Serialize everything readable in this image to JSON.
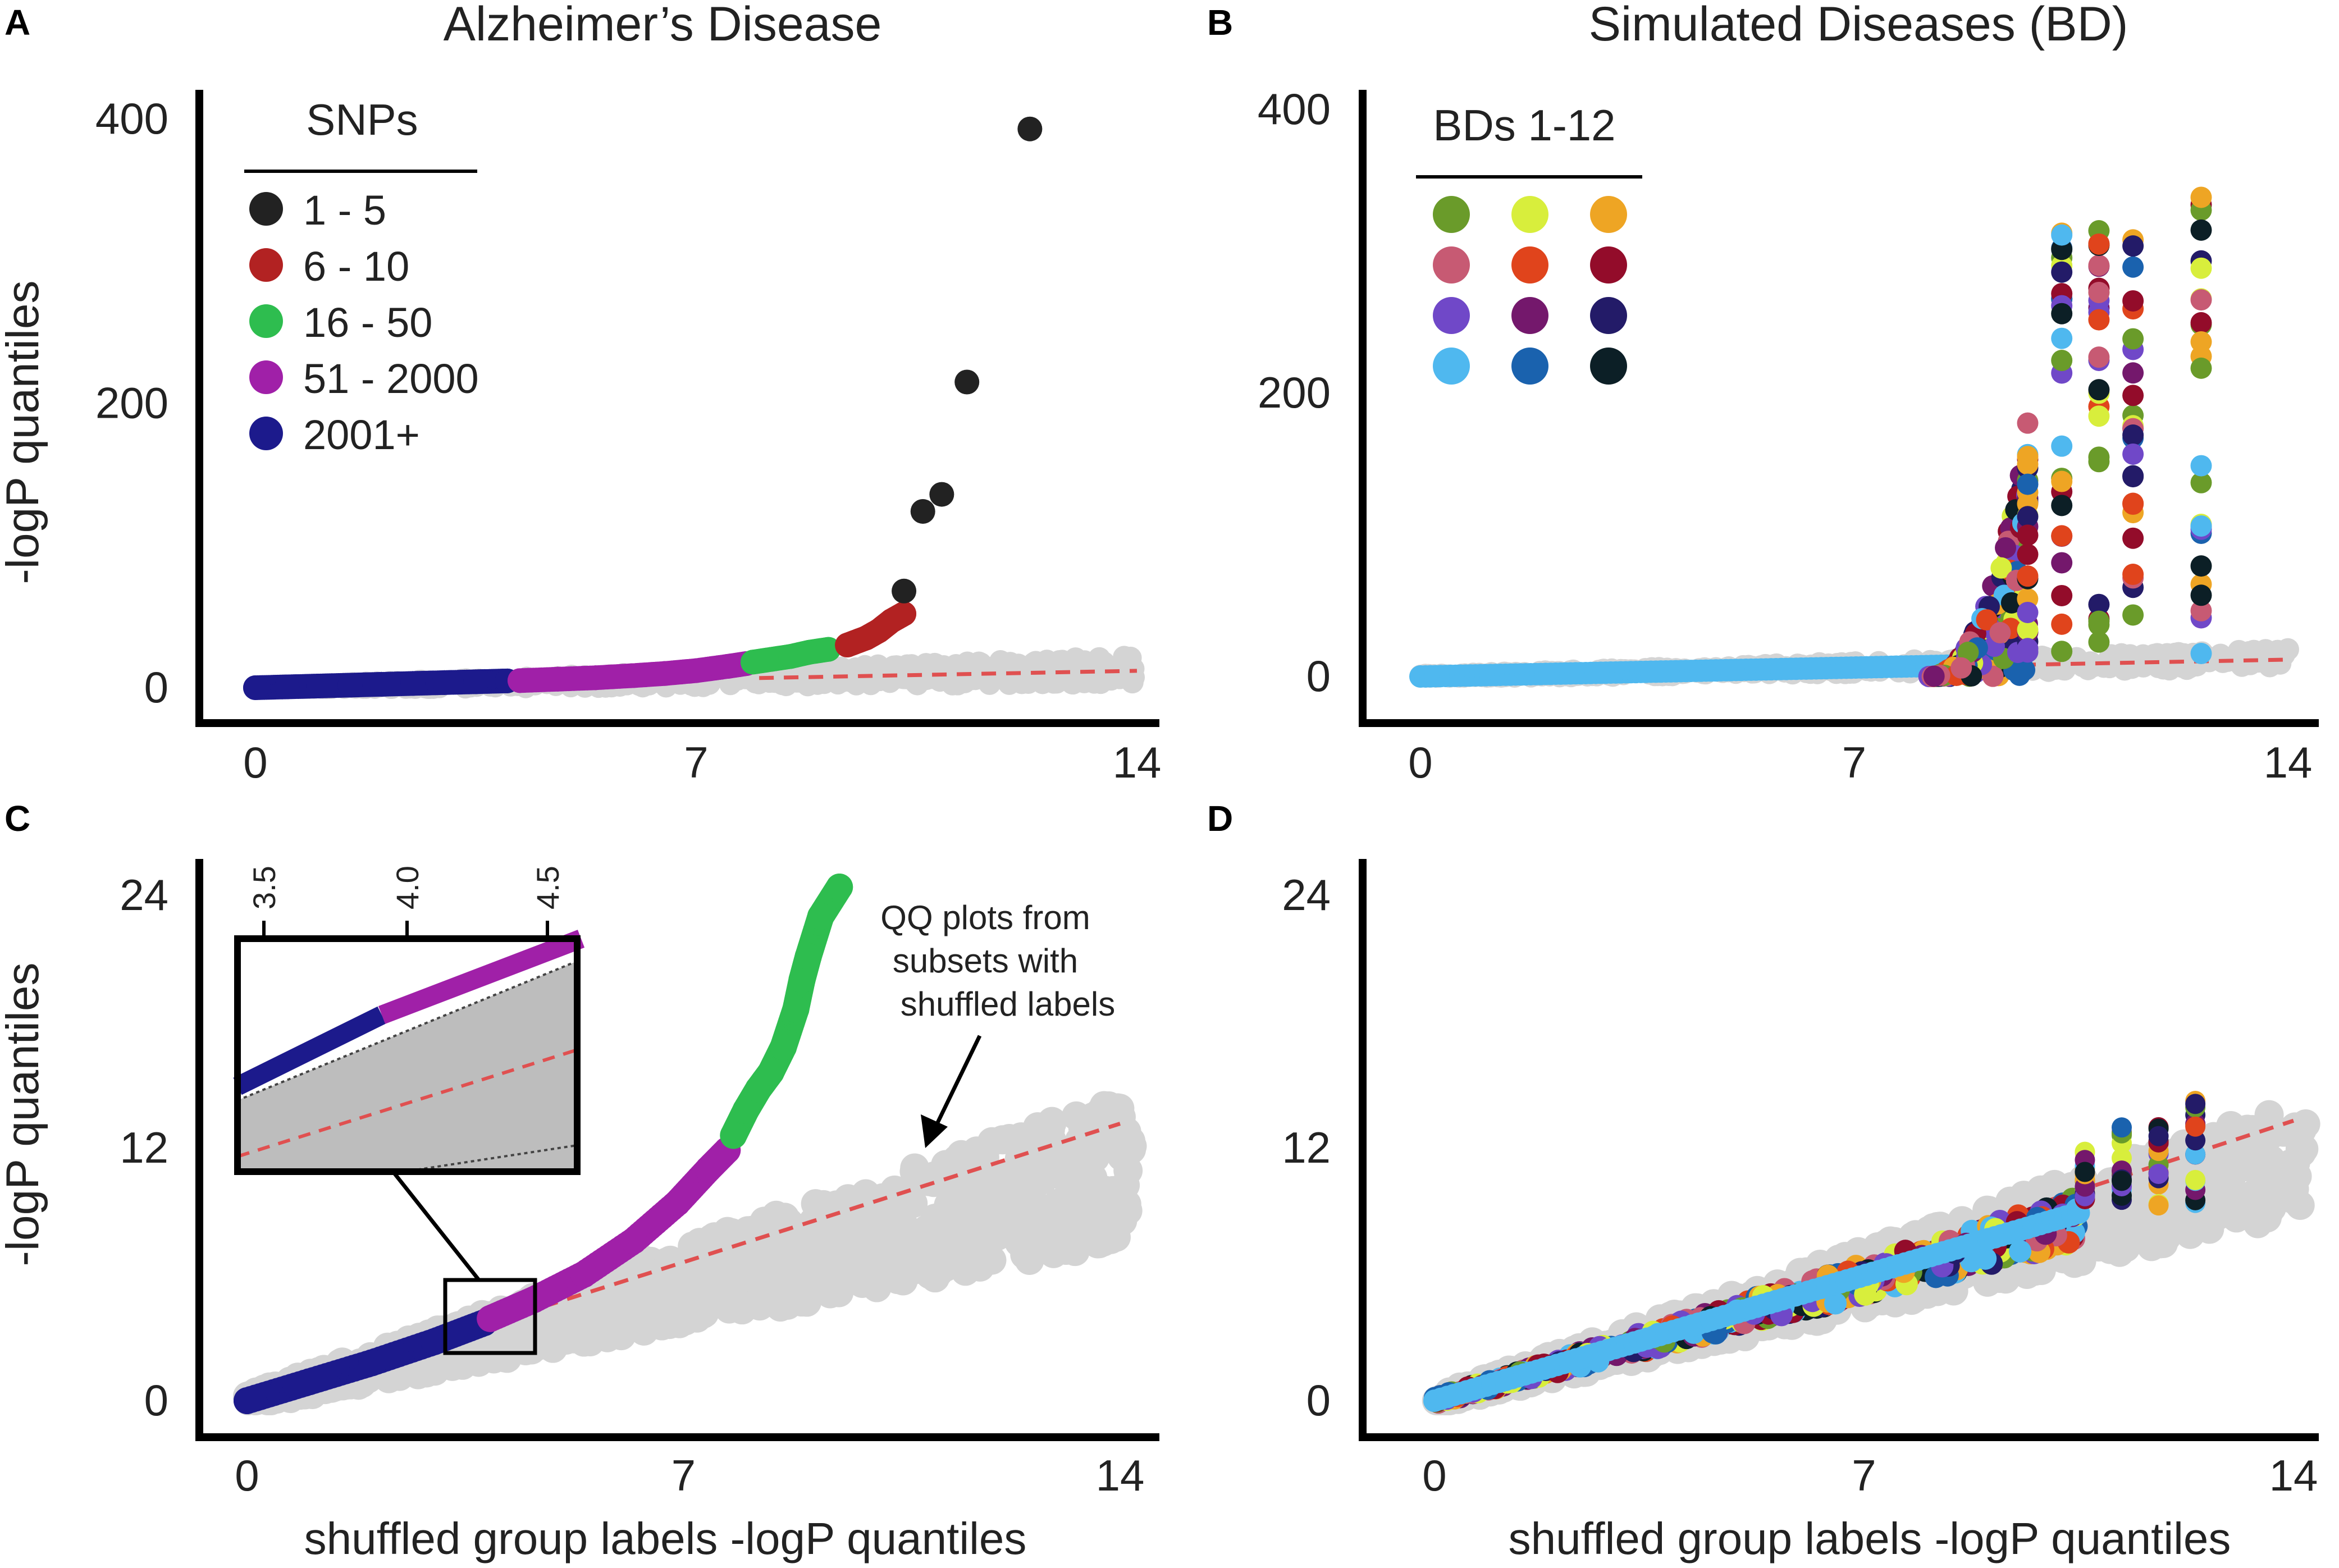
{
  "chart_data": [
    {
      "panel": "A",
      "type": "scatter",
      "title": "Alzheimer’s Disease",
      "ylabel": "-logP quantiles",
      "xlabel": "",
      "xlim": [
        0,
        14
      ],
      "ylim": [
        0,
        400
      ],
      "xticks": [
        "0",
        "7",
        "14"
      ],
      "yticks": [
        "0",
        "200",
        "400"
      ],
      "legend": {
        "title": "SNPs",
        "position": "top-left",
        "entries": [
          {
            "label": "1 - 5",
            "color": "#222222"
          },
          {
            "label": "6 - 10",
            "color": "#b22222"
          },
          {
            "label": "16 - 50",
            "color": "#2ebd4f"
          },
          {
            "label": "51 - 2000",
            "color": "#a020a8"
          },
          {
            "label": "2001+",
            "color": "#1c1a8c"
          }
        ]
      },
      "diagonal": {
        "color": "#e05050",
        "style": "dashed"
      },
      "null_color": "#d4d4d4",
      "series": [
        {
          "name": "2001+",
          "color": "#1c1a8c",
          "points": [
            [
              0.0,
              0.0
            ],
            [
              0.5,
              0.6
            ],
            [
              1.0,
              1.2
            ],
            [
              1.5,
              1.8
            ],
            [
              2.0,
              2.4
            ],
            [
              2.5,
              3.0
            ],
            [
              3.0,
              3.6
            ],
            [
              3.5,
              4.2
            ],
            [
              4.0,
              4.8
            ]
          ]
        },
        {
          "name": "51 - 2000",
          "color": "#a020a8",
          "points": [
            [
              4.2,
              5.0
            ],
            [
              4.8,
              6.0
            ],
            [
              5.4,
              7.0
            ],
            [
              6.0,
              8.5
            ],
            [
              6.5,
              10.0
            ],
            [
              7.0,
              12.0
            ],
            [
              7.5,
              15.0
            ],
            [
              7.8,
              17.0
            ]
          ]
        },
        {
          "name": "16 - 50",
          "color": "#2ebd4f",
          "points": [
            [
              7.9,
              18.0
            ],
            [
              8.2,
              20.0
            ],
            [
              8.5,
              22.0
            ],
            [
              8.8,
              25.0
            ],
            [
              9.1,
              27.0
            ]
          ]
        },
        {
          "name": "6 - 10",
          "color": "#b22222",
          "points": [
            [
              9.4,
              30.0
            ],
            [
              9.7,
              35.0
            ],
            [
              9.9,
              40.0
            ],
            [
              10.1,
              47.0
            ],
            [
              10.3,
              52.0
            ]
          ]
        },
        {
          "name": "1 - 5",
          "color": "#222222",
          "points": [
            [
              10.3,
              68.0
            ],
            [
              10.6,
              124.0
            ],
            [
              10.9,
              136.0
            ],
            [
              11.3,
              215.0
            ],
            [
              12.3,
              393.0
            ]
          ]
        }
      ]
    },
    {
      "panel": "B",
      "type": "scatter",
      "title": "Simulated Diseases (BD)",
      "ylabel": "",
      "xlabel": "",
      "xlim": [
        0,
        14
      ],
      "ylim": [
        0,
        400
      ],
      "xticks": [
        "0",
        "7",
        "14"
      ],
      "yticks": [
        "0",
        "200",
        "400"
      ],
      "legend": {
        "title": "BDs 1-12",
        "position": "top-left",
        "colors": [
          "#6a9b2a",
          "#d8ee3c",
          "#eea524",
          "#c75a73",
          "#e0441c",
          "#930c2a",
          "#7048c8",
          "#74186c",
          "#231b68",
          "#4fb8ef",
          "#1a62ae",
          "#0c1f26"
        ]
      },
      "diagonal": {
        "color": "#e05050",
        "style": "dashed"
      },
      "null_color": "#d4d4d4",
      "vertical_x": [
        9.8,
        10.35,
        10.95,
        11.5,
        12.6
      ],
      "vertical_ymax": [
        190,
        320,
        325,
        320,
        345
      ]
    },
    {
      "panel": "C",
      "type": "scatter",
      "title": "",
      "ylabel": "-logP quantiles",
      "xlabel": "shuffled group labels -logP quantiles",
      "xlim": [
        0,
        14
      ],
      "ylim": [
        0,
        24
      ],
      "xticks": [
        "0",
        "7",
        "14"
      ],
      "yticks": [
        "0",
        "12",
        "24"
      ],
      "annotation": [
        "QQ plots from",
        "subsets with",
        "shuffled labels"
      ],
      "inset": {
        "xticks": [
          "3.5",
          "4.0",
          "4.5"
        ]
      },
      "diagonal": {
        "color": "#e05050",
        "style": "dashed"
      },
      "null_color": "#d4d4d4",
      "series": [
        {
          "name": "2001+",
          "color": "#1c1a8c",
          "points": [
            [
              0.0,
              0.0
            ],
            [
              1.0,
              0.9
            ],
            [
              2.0,
              1.8
            ],
            [
              3.0,
              2.8
            ],
            [
              3.8,
              3.7
            ]
          ]
        },
        {
          "name": "51 - 2000",
          "color": "#a020a8",
          "points": [
            [
              3.9,
              3.9
            ],
            [
              4.6,
              4.8
            ],
            [
              5.4,
              6.0
            ],
            [
              6.2,
              7.6
            ],
            [
              6.9,
              9.4
            ],
            [
              7.4,
              11.0
            ],
            [
              7.7,
              11.9
            ]
          ]
        },
        {
          "name": "16 - 50",
          "color": "#2ebd4f",
          "points": [
            [
              7.8,
              12.6
            ],
            [
              8.0,
              13.8
            ],
            [
              8.2,
              14.8
            ],
            [
              8.4,
              15.6
            ],
            [
              8.6,
              16.8
            ],
            [
              8.8,
              18.6
            ],
            [
              8.9,
              20.0
            ],
            [
              9.0,
              21.1
            ],
            [
              9.2,
              23.0
            ],
            [
              9.5,
              24.4
            ]
          ]
        }
      ]
    },
    {
      "panel": "D",
      "type": "scatter",
      "title": "",
      "ylabel": "",
      "xlabel": "shuffled group labels -logP quantiles",
      "xlim": [
        0,
        14
      ],
      "ylim": [
        0,
        24
      ],
      "xticks": [
        "0",
        "7",
        "14"
      ],
      "yticks": [
        "0",
        "12",
        "24"
      ],
      "diagonal": {
        "color": "#e05050",
        "style": "dashed"
      },
      "null_color": "#d4d4d4",
      "vertical_x": [
        10.6,
        11.2,
        11.8,
        12.4
      ],
      "vertical_ymax": [
        12.6,
        13.3,
        14.0,
        14.3
      ]
    }
  ]
}
